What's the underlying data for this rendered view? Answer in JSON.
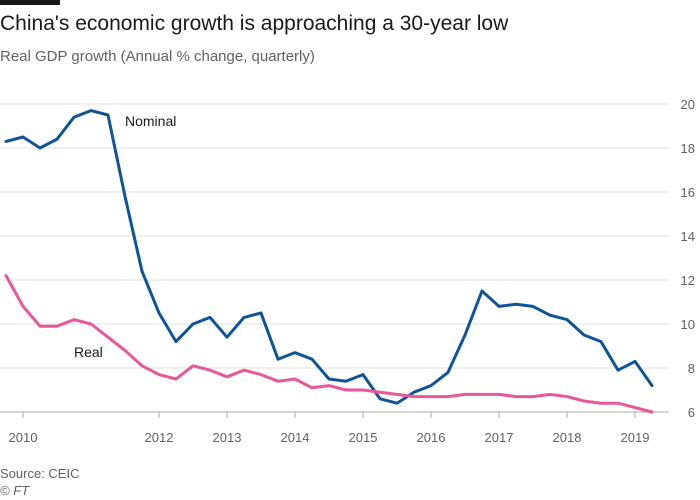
{
  "header": {
    "title": "China's economic growth is approaching a 30-year low",
    "subtitle": "Real GDP growth (Annual % change, quarterly)"
  },
  "footer": {
    "source": "Source: CEIC",
    "copyright": "© FT"
  },
  "colors": {
    "nominal": "#0f5499",
    "real": "#e8579a",
    "grid": "#e6e0da",
    "axis_text": "#66605c",
    "baseline": "#b3aca5"
  },
  "chart_data": {
    "type": "line",
    "title": "China's economic growth is approaching a 30-year low",
    "subtitle": "Real GDP growth (Annual % change, quarterly)",
    "xlabel": "",
    "ylabel": "",
    "ylim": [
      6,
      20
    ],
    "xlim": [
      2010.0,
      2019.75
    ],
    "yticks": [
      6,
      8,
      10,
      12,
      14,
      16,
      18,
      20
    ],
    "xticks": [
      {
        "value": 2010.25,
        "label": "2010"
      },
      {
        "value": 2012.25,
        "label": "2012"
      },
      {
        "value": 2013.25,
        "label": "2013"
      },
      {
        "value": 2014.25,
        "label": "2014"
      },
      {
        "value": 2015.25,
        "label": "2015"
      },
      {
        "value": 2016.25,
        "label": "2016"
      },
      {
        "value": 2017.25,
        "label": "2017"
      },
      {
        "value": 2018.25,
        "label": "2018"
      },
      {
        "value": 2019.25,
        "label": "2019"
      }
    ],
    "grid": true,
    "y_axis_side": "right",
    "x": [
      2010.0,
      2010.25,
      2010.5,
      2010.75,
      2011.0,
      2011.25,
      2011.5,
      2011.75,
      2012.0,
      2012.25,
      2012.5,
      2012.75,
      2013.0,
      2013.25,
      2013.5,
      2013.75,
      2014.0,
      2014.25,
      2014.5,
      2014.75,
      2015.0,
      2015.25,
      2015.5,
      2015.75,
      2016.0,
      2016.25,
      2016.5,
      2016.75,
      2017.0,
      2017.25,
      2017.5,
      2017.75,
      2018.0,
      2018.25,
      2018.5,
      2018.75,
      2019.0,
      2019.25,
      2019.5,
      2019.75
    ],
    "series": [
      {
        "name": "Nominal",
        "values": [
          18.3,
          18.5,
          18.0,
          18.4,
          19.4,
          19.7,
          19.5,
          15.8,
          12.4,
          10.5,
          9.2,
          10.0,
          10.3,
          9.4,
          10.3,
          10.5,
          8.4,
          8.7,
          8.4,
          7.5,
          7.4,
          7.7,
          6.6,
          6.4,
          6.9,
          7.2,
          7.8,
          9.5,
          11.5,
          10.8,
          10.9,
          10.8,
          10.4,
          10.2,
          9.5,
          9.2,
          7.9,
          8.3,
          7.2,
          null
        ],
        "color": "#0f5499"
      },
      {
        "name": "Real",
        "values": [
          12.2,
          10.8,
          9.9,
          9.9,
          10.2,
          10.0,
          9.4,
          8.8,
          8.1,
          7.7,
          7.5,
          8.1,
          7.9,
          7.6,
          7.9,
          7.7,
          7.4,
          7.5,
          7.1,
          7.2,
          7.0,
          7.0,
          6.9,
          6.8,
          6.7,
          6.7,
          6.7,
          6.8,
          6.8,
          6.8,
          6.7,
          6.7,
          6.8,
          6.7,
          6.5,
          6.4,
          6.4,
          6.2,
          6.0,
          null
        ],
        "color": "#e8579a"
      }
    ],
    "annotations": [
      {
        "text": "Nominal",
        "x": 2011.75,
        "y": 19.0
      },
      {
        "text": "Real",
        "x": 2011.0,
        "y": 8.5
      }
    ]
  }
}
